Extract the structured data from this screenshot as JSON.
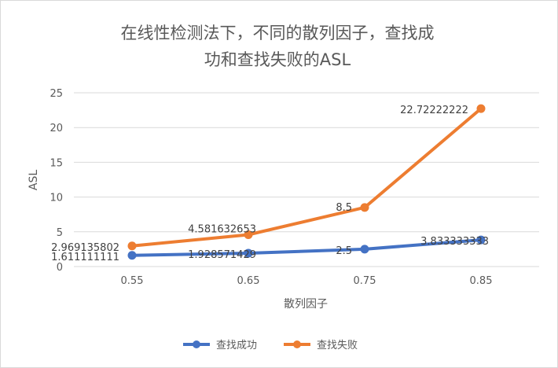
{
  "chart_data": {
    "type": "line",
    "title_lines": [
      "在线性检测法下，不同的散列因子，查找成",
      "功和查找失败的ASL"
    ],
    "xlabel": "散列因子",
    "ylabel": "ASL",
    "categories": [
      "0.55",
      "0.65",
      "0.75",
      "0.85"
    ],
    "ylim": [
      0,
      25
    ],
    "yticks": [
      "0",
      "5",
      "10",
      "15",
      "20",
      "25"
    ],
    "grid": true,
    "legend_position": "bottom",
    "series": [
      {
        "name": "查找成功",
        "color": "#4472C4",
        "values": [
          1.611111111,
          1.928571429,
          2.5,
          3.833333333
        ],
        "labels": [
          "1.611111111",
          "1.928571429",
          "2.5",
          "3.833333333"
        ]
      },
      {
        "name": "查找失败",
        "color": "#ED7D31",
        "values": [
          2.969135802,
          4.581632653,
          8.5,
          22.72222222
        ],
        "labels": [
          "2.969135802",
          "4.581632653",
          "8.5",
          "22.72222222"
        ]
      }
    ]
  }
}
